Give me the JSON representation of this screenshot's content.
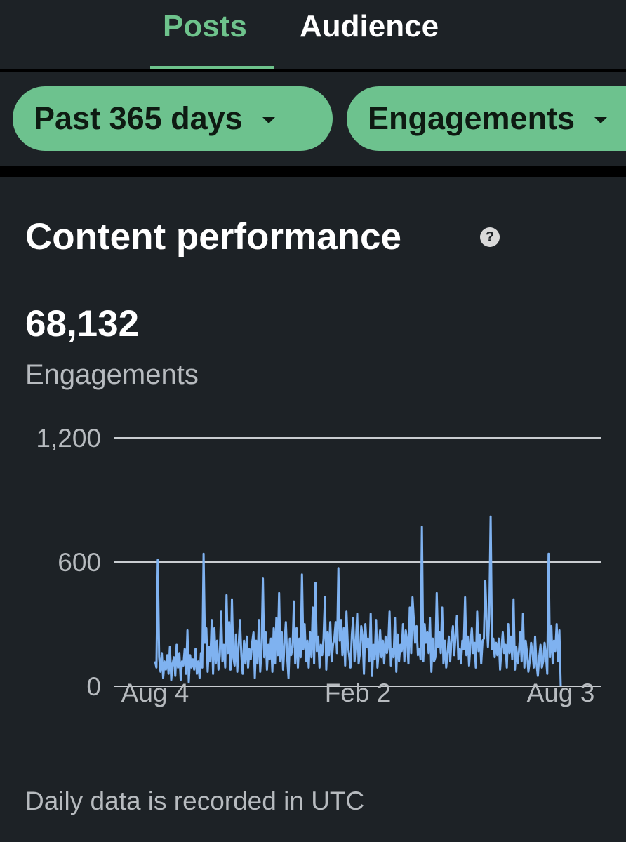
{
  "tabs": [
    {
      "label": "Posts",
      "active": true
    },
    {
      "label": "Audience",
      "active": false
    }
  ],
  "filters": {
    "range": "Past 365 days",
    "metric": "Engagements"
  },
  "card": {
    "title": "Content performance",
    "help_icon": "?",
    "total": "68,132",
    "total_label": "Engagements",
    "footnote": "Daily data is recorded in UTC"
  },
  "colors": {
    "accent": "#6ec38c",
    "pill": "#6dc28e",
    "line": "#7fb2f0",
    "background": "#1d2226",
    "muted_text": "#b7bbbf"
  },
  "chart_data": {
    "type": "line",
    "title": "",
    "xlabel": "",
    "ylabel": "",
    "ylim": [
      0,
      1200
    ],
    "y_ticks": [
      "0",
      "600",
      "1,200"
    ],
    "y_tick_values": [
      0,
      600,
      1200
    ],
    "x_ticks": [
      "Aug 4",
      "Feb 2",
      "Aug 3"
    ],
    "grid": true,
    "series": [
      {
        "values": [
          120,
          90,
          610,
          140,
          70,
          160,
          40,
          120,
          80,
          150,
          60,
          190,
          30,
          110,
          140,
          50,
          200,
          90,
          160,
          30,
          120,
          100,
          180,
          60,
          270,
          20,
          150,
          90,
          130,
          80,
          180,
          60,
          120,
          40,
          160,
          90,
          640,
          210,
          280,
          70,
          190,
          120,
          320,
          60,
          280,
          110,
          220,
          80,
          150,
          360,
          120,
          200,
          90,
          440,
          160,
          310,
          80,
          420,
          140,
          100,
          250,
          70,
          200,
          320,
          150,
          60,
          220,
          110,
          240,
          90,
          180,
          130,
          210,
          260,
          40,
          220,
          110,
          320,
          70,
          180,
          520,
          140,
          260,
          80,
          200,
          130,
          230,
          70,
          280,
          110,
          330,
          150,
          450,
          120,
          260,
          80,
          200,
          310,
          140,
          40,
          230,
          150,
          190,
          410,
          110,
          280,
          90,
          230,
          140,
          540,
          180,
          300,
          120,
          220,
          90,
          260,
          140,
          380,
          110,
          500,
          170,
          240,
          90,
          200,
          150,
          230,
          430,
          80,
          260,
          150,
          310,
          120,
          200,
          230,
          310,
          160,
          570,
          220,
          320,
          150,
          280,
          100,
          360,
          200,
          150,
          90,
          250,
          330,
          120,
          210,
          350,
          110,
          160,
          290,
          240,
          60,
          300,
          190,
          230,
          120,
          350,
          50,
          200,
          130,
          320,
          90,
          180,
          270,
          140,
          220,
          110,
          240,
          160,
          200,
          360,
          100,
          180,
          140,
          330,
          70,
          250,
          120,
          200,
          170,
          300,
          120,
          270,
          220,
          110,
          380,
          160,
          430,
          320,
          210,
          290,
          150,
          180,
          130,
          770,
          120,
          300,
          210,
          260,
          160,
          330,
          70,
          230,
          120,
          140,
          450,
          190,
          260,
          160,
          380,
          110,
          220,
          90,
          160,
          240,
          120,
          230,
          290,
          150,
          250,
          340,
          130,
          180,
          110,
          220,
          180,
          430,
          150,
          240,
          100,
          200,
          280,
          160,
          210,
          90,
          360,
          170,
          250,
          110,
          220,
          230,
          510,
          320,
          190,
          350,
          820,
          180,
          230,
          140,
          210,
          150,
          230,
          80,
          180,
          260,
          160,
          200,
          90,
          300,
          160,
          240,
          130,
          420,
          80,
          190,
          110,
          170,
          260,
          120,
          350,
          90,
          220,
          160,
          70,
          120,
          210,
          160,
          90,
          240,
          110,
          50,
          140,
          200,
          90,
          120,
          210,
          150,
          60,
          640,
          140,
          290,
          110,
          220,
          170,
          300,
          120,
          270,
          0
        ]
      }
    ]
  }
}
